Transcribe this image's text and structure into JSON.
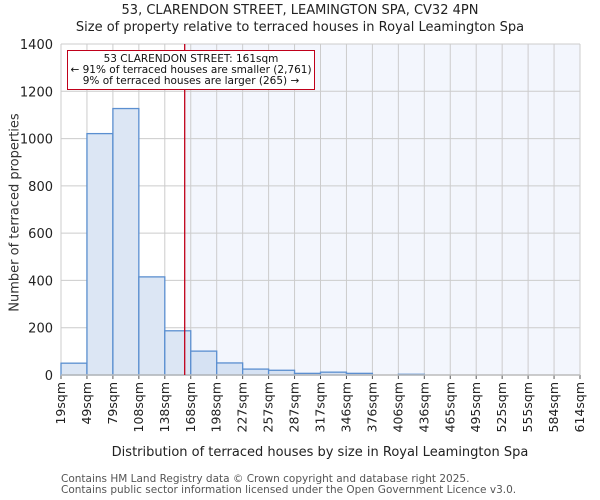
{
  "header": {
    "title": "53, CLARENDON STREET, LEAMINGTON SPA, CV32 4PN",
    "subtitle": "Size of property relative to terraced houses in Royal Leamington Spa"
  },
  "annotation": {
    "line1": "53 CLARENDON STREET: 161sqm",
    "line2": "← 91% of terraced houses are smaller (2,761)",
    "line3": "9% of terraced houses are larger (265) →"
  },
  "footer": {
    "line1": "Contains HM Land Registry data © Crown copyright and database right 2025.",
    "line2": "Contains public sector information licensed under the Open Government Licence v3.0."
  },
  "colors": {
    "bar_fill": "#dce6f4",
    "bar_fill_right": "#d6e2f3",
    "bar_stroke": "#5b8fd0",
    "marker": "#c0001a",
    "highlight_bg": "#f3f6fd",
    "grid": "#cccccc"
  },
  "chart_data": {
    "type": "bar",
    "title": "53, CLARENDON STREET, LEAMINGTON SPA, CV32 4PN",
    "subtitle": "Size of property relative to terraced houses in Royal Leamington Spa",
    "xlabel": "Distribution of terraced houses by size in Royal Leamington Spa",
    "ylabel": "Number of terraced properties",
    "categories": [
      "19sqm",
      "49sqm",
      "79sqm",
      "108sqm",
      "138sqm",
      "168sqm",
      "198sqm",
      "227sqm",
      "257sqm",
      "287sqm",
      "317sqm",
      "346sqm",
      "376sqm",
      "406sqm",
      "436sqm",
      "465sqm",
      "495sqm",
      "525sqm",
      "555sqm",
      "584sqm",
      "614sqm"
    ],
    "values": [
      50,
      1021,
      1127,
      415,
      187,
      101,
      51,
      25,
      20,
      7,
      12,
      7,
      0,
      3,
      0,
      0,
      0,
      0,
      0,
      0
    ],
    "ylim": [
      0,
      1400
    ],
    "yticks": [
      0,
      200,
      400,
      600,
      800,
      1000,
      1200,
      1400
    ],
    "grid": true,
    "marker": {
      "value": 161,
      "label": "53 CLARENDON STREET: 161sqm"
    },
    "annotations": [
      "53 CLARENDON STREET: 161sqm",
      "← 91% of terraced houses are smaller (2,761)",
      "9% of terraced houses are larger (265) →"
    ]
  }
}
